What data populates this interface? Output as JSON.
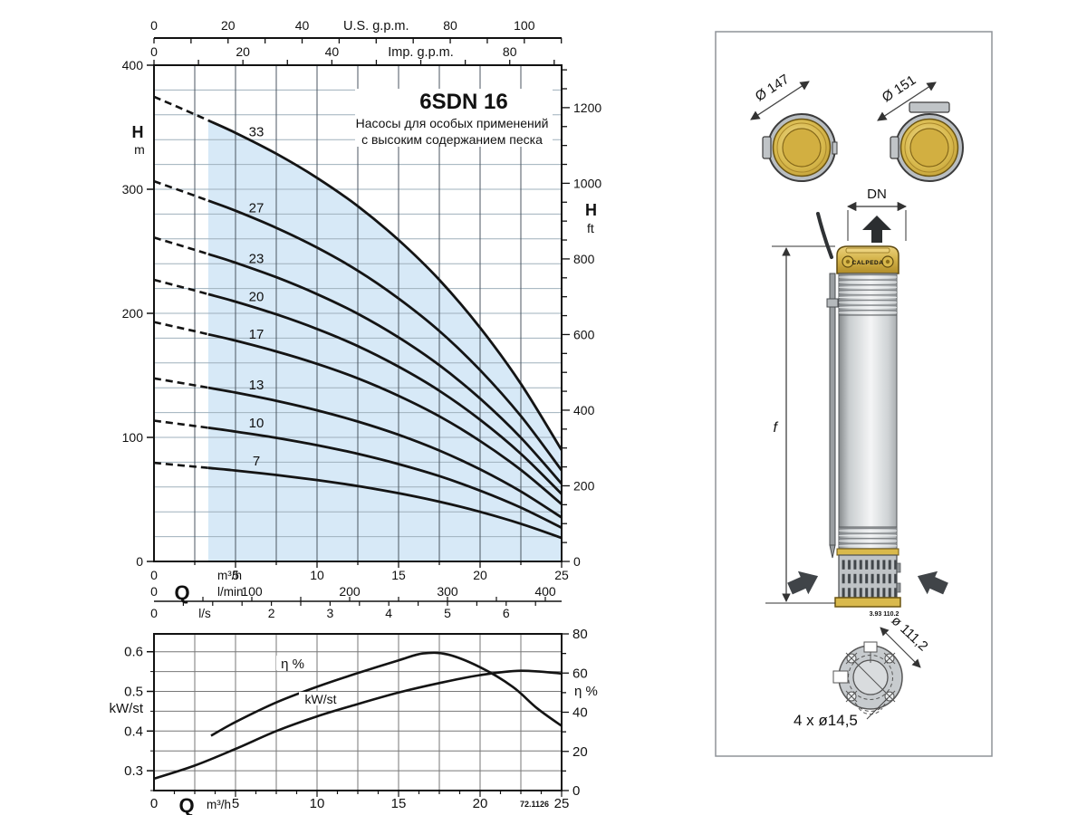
{
  "header": {
    "title": "6SDN 16",
    "subtitle1": "Насосы для особых применений",
    "subtitle2": "с высоким содержанием песка"
  },
  "main_chart": {
    "top_axis_us": {
      "title": "U.S. g.p.m.",
      "labels": [
        0,
        20,
        40,
        80,
        100
      ]
    },
    "top_axis_imp": {
      "title": "Imp. g.p.m.",
      "labels": [
        0,
        20,
        40,
        80
      ]
    },
    "left_axis": {
      "symbol": "H",
      "unit": "m",
      "labels": [
        400,
        300,
        200,
        100,
        0
      ]
    },
    "right_axis": {
      "symbol": "H",
      "unit": "ft",
      "labels": [
        1200,
        1000,
        800,
        600,
        400,
        200,
        0
      ]
    },
    "bottom_axis": {
      "symbol": "Q",
      "row_m3h": {
        "unit": "m³/h",
        "labels": [
          0,
          5,
          10,
          15,
          20,
          25
        ]
      },
      "row_lmin": {
        "unit": "l/min",
        "labels": [
          0,
          100,
          200,
          300,
          400
        ]
      },
      "row_ls": {
        "unit": "l/s",
        "labels": [
          0,
          2,
          3,
          4,
          5,
          6
        ]
      }
    }
  },
  "power_chart": {
    "left_axis": {
      "label": "kW/st",
      "labels": [
        "0.3",
        "0.4",
        "0.5",
        "0.6"
      ]
    },
    "right_axis": {
      "label": "η %",
      "labels": [
        0,
        20,
        40,
        60,
        80
      ]
    },
    "bottom_axis": {
      "symbol": "Q",
      "unit": "m³/h",
      "labels": [
        0,
        5,
        10,
        15,
        20,
        25
      ]
    },
    "curve_label_eta": "η %",
    "curve_label_kw": "kW/st",
    "footnote": "72.1126"
  },
  "chart_data": [
    {
      "type": "line",
      "title": "6SDN 16",
      "x_label": "Q (m³/h)",
      "y_label_left": "H (m)",
      "y_label_right": "H (ft)",
      "x_range": [
        0,
        25
      ],
      "y_range_m": [
        0,
        400
      ],
      "grid": true,
      "dashed_until_x": 3.33,
      "shaded_from_x": 3.33,
      "shade_color": "#d7e9f7",
      "x": [
        0,
        2.5,
        5,
        7.5,
        10,
        12.5,
        15,
        17.5,
        20,
        22.5,
        25
      ],
      "series": [
        {
          "name": "33",
          "values": [
            374.6,
            360.4,
            345.5,
            328.7,
            309.2,
            286.4,
            259.1,
            227.0,
            188.4,
            143.2,
            89.8
          ]
        },
        {
          "name": "27",
          "values": [
            306.5,
            294.8,
            282.7,
            268.9,
            253.0,
            234.4,
            212.0,
            185.8,
            154.2,
            117.2,
            73.4
          ]
        },
        {
          "name": "23",
          "values": [
            261.1,
            251.2,
            240.8,
            229.1,
            215.5,
            199.6,
            180.6,
            158.2,
            131.3,
            99.8,
            62.6
          ]
        },
        {
          "name": "20",
          "values": [
            227.0,
            218.4,
            209.4,
            199.2,
            187.4,
            173.6,
            157.0,
            137.6,
            114.2,
            86.8,
            54.4
          ]
        },
        {
          "name": "17",
          "values": [
            193.0,
            185.6,
            178.0,
            169.3,
            159.3,
            147.6,
            133.5,
            117.0,
            97.1,
            73.8,
            46.2
          ]
        },
        {
          "name": "13",
          "values": [
            147.6,
            142.0,
            136.1,
            129.5,
            121.8,
            112.8,
            102.1,
            89.4,
            74.2,
            56.4,
            35.4
          ]
        },
        {
          "name": "10",
          "values": [
            113.5,
            109.2,
            104.7,
            99.6,
            93.7,
            86.8,
            78.5,
            68.8,
            57.1,
            43.4,
            27.2
          ]
        },
        {
          "name": "7",
          "values": [
            79.5,
            76.4,
            73.3,
            69.7,
            65.6,
            60.8,
            55.0,
            48.2,
            40.0,
            30.4,
            19.0
          ]
        }
      ]
    },
    {
      "type": "line",
      "x_label": "Q (m³/h)",
      "x_range": [
        0,
        25
      ],
      "left_axis": {
        "label": "kW/st",
        "range": [
          0.25,
          0.645
        ],
        "ticks": [
          0.3,
          0.4,
          0.5,
          0.6
        ]
      },
      "right_axis": {
        "label": "η %",
        "range": [
          0,
          80
        ],
        "ticks": [
          0,
          20,
          40,
          60,
          80
        ]
      },
      "series": [
        {
          "name": "η %",
          "axis": "right",
          "x": [
            3.5,
            5,
            7.5,
            10,
            12.5,
            15,
            16.5,
            18,
            20,
            22,
            23.5,
            25
          ],
          "values": [
            28,
            35,
            45,
            53,
            60,
            66.5,
            70,
            69.5,
            63,
            53,
            42,
            33
          ]
        },
        {
          "name": "kW/st",
          "axis": "left",
          "x": [
            0,
            2.5,
            5,
            7.5,
            10,
            12.5,
            15,
            17.5,
            20,
            22.5,
            25
          ],
          "values": [
            0.28,
            0.313,
            0.355,
            0.4,
            0.437,
            0.468,
            0.497,
            0.521,
            0.541,
            0.552,
            0.545
          ]
        }
      ]
    }
  ],
  "pump_drawing": {
    "dia_left": "Ø 147",
    "dia_right": "Ø 151",
    "dn": "DN",
    "brand": "CALPEDA",
    "f": "f",
    "ref": "3.93 110.2",
    "dia_bottom": "ø 111,2",
    "holes": "4 x ø14,5"
  }
}
